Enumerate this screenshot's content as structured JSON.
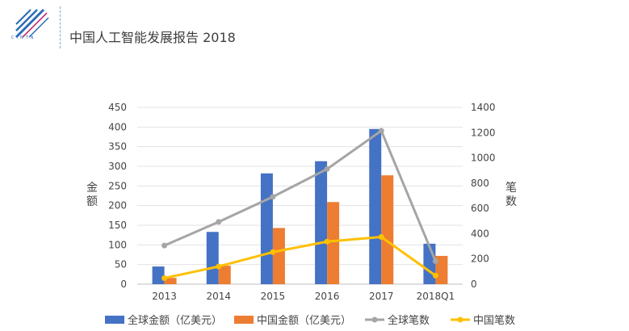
{
  "header": {
    "title": "中国人工智能发展报告 2018",
    "logo_text": "CINTN"
  },
  "chart_data": {
    "type": "bar",
    "categories": [
      "2013",
      "2014",
      "2015",
      "2016",
      "2017",
      "2018Q1"
    ],
    "ylabel": "金额",
    "y2label": "笔数",
    "ylim": [
      0,
      450
    ],
    "y_ticks": [
      "0",
      "50",
      "100",
      "150",
      "200",
      "250",
      "300",
      "350",
      "400",
      "450"
    ],
    "y2lim": [
      0,
      1400
    ],
    "y2_ticks": [
      "0",
      "200",
      "400",
      "600",
      "800",
      "1000",
      "1200",
      "1400"
    ],
    "grid": true,
    "legend_position": "bottom",
    "bar_series": [
      {
        "name": "全球金额（亿美元）",
        "color": "#4472c4",
        "values": [
          45,
          133,
          282,
          313,
          395,
          103
        ],
        "axis": "left"
      },
      {
        "name": "中国金额（亿美元）",
        "color": "#ed7d31",
        "values": [
          16,
          47,
          143,
          209,
          277,
          72
        ],
        "axis": "left"
      }
    ],
    "line_series": [
      {
        "name": "全球笔数",
        "color": "#a5a5a5",
        "values": [
          306,
          493,
          692,
          912,
          1215,
          182
        ],
        "axis": "right"
      },
      {
        "name": "中国笔数",
        "color": "#ffc000",
        "values": [
          48,
          140,
          254,
          337,
          374,
          68
        ],
        "axis": "right"
      }
    ]
  }
}
